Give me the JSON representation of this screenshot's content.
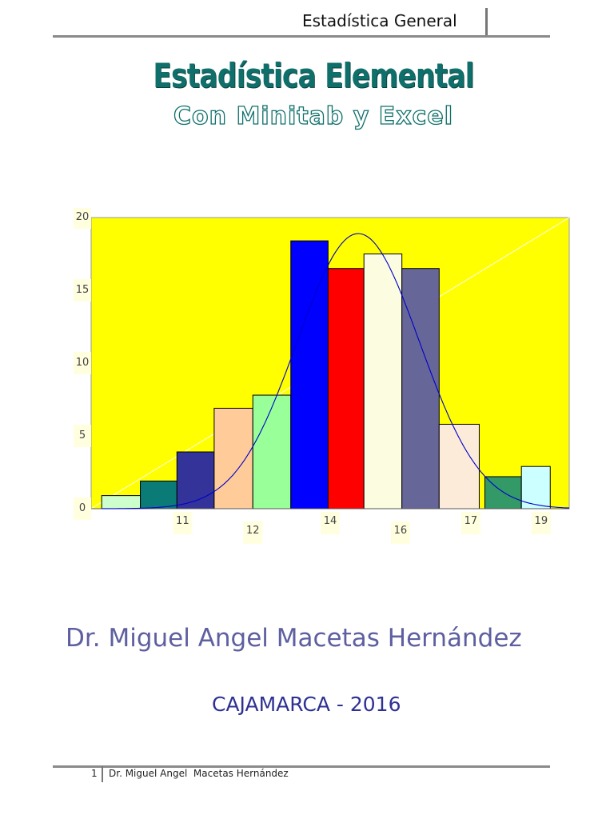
{
  "header": {
    "title": "Estadística General"
  },
  "main": {
    "title": "Estadística Elemental",
    "subtitle": "Con Minitab y Excel"
  },
  "author": "Dr. Miguel Angel Macetas Hernández",
  "city": "CAJAMARCA - 2016",
  "footer": {
    "page": "1",
    "text": "Dr. Miguel Angel  Macetas Hernández"
  },
  "chart_data": {
    "type": "bar",
    "title": "",
    "xlabel": "",
    "ylabel": "",
    "ylim": [
      0,
      20
    ],
    "yticks": [
      0,
      5,
      10,
      15,
      20
    ],
    "ytick_labels": [
      "0",
      "5",
      "10",
      "15",
      "20"
    ],
    "xticks": [
      {
        "label": "11",
        "value": 11
      },
      {
        "label": "12",
        "value": 12
      },
      {
        "label": "14",
        "value": 13.1
      },
      {
        "label": "16",
        "value": 14.1
      },
      {
        "label": "17",
        "value": 15.1
      },
      {
        "label": "19",
        "value": 16.1
      }
    ],
    "xlim": [
      9.7,
      16.5
    ],
    "background_color": "#ffff00",
    "bars": [
      {
        "x0": 9.85,
        "x1": 10.4,
        "value": 0.9,
        "color": "#ccffcc"
      },
      {
        "x0": 10.4,
        "x1": 10.92,
        "value": 1.9,
        "color": "#0a7b76"
      },
      {
        "x0": 10.92,
        "x1": 11.45,
        "value": 3.9,
        "color": "#333399"
      },
      {
        "x0": 11.45,
        "x1": 12.0,
        "value": 6.9,
        "color": "#ffcc99"
      },
      {
        "x0": 12.0,
        "x1": 12.54,
        "value": 7.8,
        "color": "#99ff99"
      },
      {
        "x0": 12.54,
        "x1": 13.07,
        "value": 18.4,
        "color": "#0000ff"
      },
      {
        "x0": 13.07,
        "x1": 13.58,
        "value": 16.5,
        "color": "#ff0000"
      },
      {
        "x0": 13.58,
        "x1": 14.12,
        "value": 17.5,
        "color": "#fbfce0"
      },
      {
        "x0": 14.12,
        "x1": 14.65,
        "value": 16.5,
        "color": "#666699"
      },
      {
        "x0": 14.65,
        "x1": 15.22,
        "value": 5.8,
        "color": "#fdebd9"
      },
      {
        "x0": 15.3,
        "x1": 15.82,
        "value": 2.2,
        "color": "#339966"
      },
      {
        "x0": 15.82,
        "x1": 16.23,
        "value": 2.9,
        "color": "#ccffff"
      }
    ],
    "normal_curve": {
      "mean": 13.5,
      "sd": 0.87,
      "peak": 18.9,
      "color": "#0000cc"
    },
    "diagonal_line": {
      "x0": 9.7,
      "y0": 0,
      "x1": 16.5,
      "y1": 20,
      "color": "#ffffcc"
    }
  }
}
